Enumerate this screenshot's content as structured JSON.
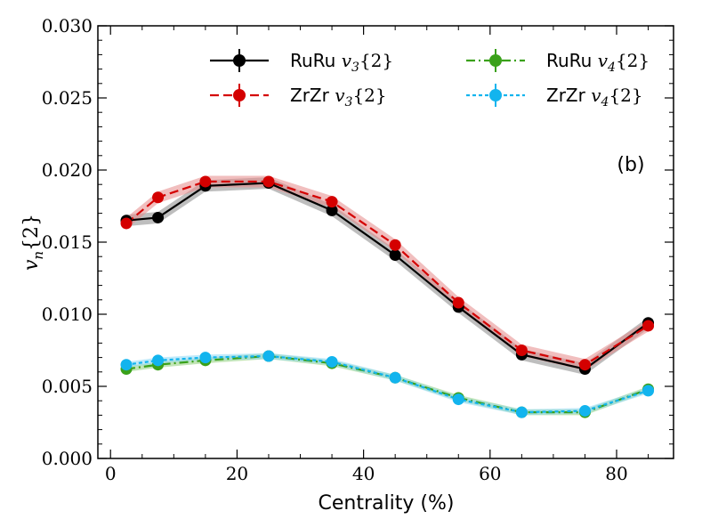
{
  "chart_data": {
    "type": "line",
    "title": "",
    "xlabel": "Centrality (%)",
    "ylabel": "v_n{2}",
    "ylabel_display": {
      "base": "v",
      "sub": "n",
      "rest": "{2}"
    },
    "xlim": [
      -2,
      89
    ],
    "ylim": [
      0.0,
      0.03
    ],
    "xticks": [
      0,
      20,
      40,
      60,
      80
    ],
    "xtick_labels": [
      "0",
      "20",
      "40",
      "60",
      "80"
    ],
    "yticks": [
      0.0,
      0.005,
      0.01,
      0.015,
      0.02,
      0.025,
      0.03
    ],
    "ytick_labels": [
      "0.000",
      "0.005",
      "0.010",
      "0.015",
      "0.020",
      "0.025",
      "0.030"
    ],
    "annotation": "(b)",
    "legend_position": "top-center",
    "x": [
      2.5,
      7.5,
      15,
      25,
      35,
      45,
      55,
      65,
      75,
      85
    ],
    "series": [
      {
        "name": "RuRu v3{2}",
        "label_prefix": "RuRu",
        "label_base": "v",
        "label_sub": "3",
        "label_rest": "{2}",
        "color": "#000000",
        "band_color": "#888888",
        "dash": "solid",
        "values": [
          0.0165,
          0.0167,
          0.0189,
          0.0191,
          0.0172,
          0.0141,
          0.0105,
          0.0072,
          0.0062,
          0.0094
        ],
        "band": 0.0004
      },
      {
        "name": "ZrZr v3{2}",
        "label_prefix": "ZrZr",
        "label_base": "v",
        "label_sub": "3",
        "label_rest": "{2}",
        "color": "#d40000",
        "band_color": "#e58888",
        "dash": "dashed",
        "values": [
          0.0163,
          0.0181,
          0.0192,
          0.0192,
          0.0178,
          0.0148,
          0.0108,
          0.0075,
          0.0065,
          0.0092
        ],
        "band": 0.0004
      },
      {
        "name": "RuRu v4{2}",
        "label_prefix": "RuRu",
        "label_base": "v",
        "label_sub": "4",
        "label_rest": "{2}",
        "color": "#3aa11a",
        "band_color": "#8fd07a",
        "dash": "dashdot",
        "values": [
          0.0062,
          0.0065,
          0.0068,
          0.0071,
          0.0066,
          0.0056,
          0.0042,
          0.0032,
          0.0032,
          0.0048
        ],
        "band": 0.0002
      },
      {
        "name": "ZrZr v4{2}",
        "label_prefix": "ZrZr",
        "label_base": "v",
        "label_sub": "4",
        "label_rest": "{2}",
        "color": "#12b4ee",
        "band_color": "#8ed9f5",
        "dash": "dotted",
        "values": [
          0.0065,
          0.0068,
          0.007,
          0.0071,
          0.0067,
          0.0056,
          0.0041,
          0.0032,
          0.0033,
          0.0047
        ],
        "band": 0.0002
      }
    ]
  }
}
